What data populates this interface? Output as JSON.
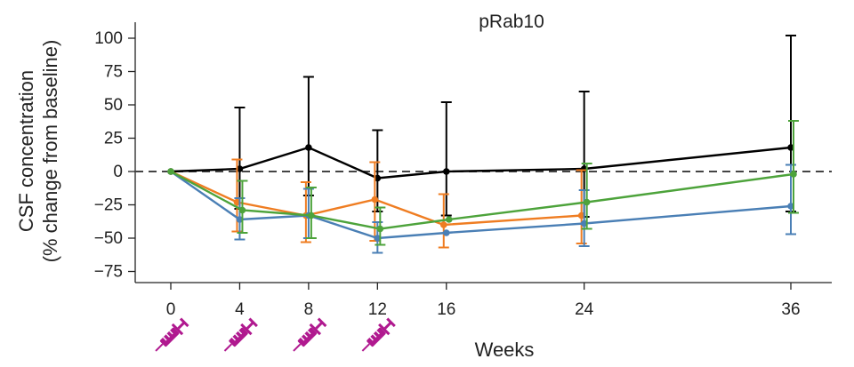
{
  "chart_data": {
    "type": "line",
    "title": "pRab10",
    "xlabel": "Weeks",
    "ylabel_line1": "CSF concentration",
    "ylabel_line2": "(% change from baseline)",
    "ylim": [
      -75,
      105
    ],
    "yticks": [
      100,
      75,
      50,
      25,
      0,
      -25,
      -50,
      -75
    ],
    "xticks": [
      0,
      4,
      8,
      12,
      16,
      24,
      36
    ],
    "xlim": [
      -1.5,
      38
    ],
    "baseline": 0,
    "dose_weeks": [
      0,
      4,
      8,
      12
    ],
    "dose_icon": "syringe-icon",
    "series": [
      {
        "name": "black",
        "color": "#000000",
        "points": [
          {
            "x": 0,
            "y": 0,
            "lo": 0,
            "hi": 0
          },
          {
            "x": 4,
            "y": 2,
            "lo": -28,
            "hi": 48
          },
          {
            "x": 8,
            "y": 18,
            "lo": -18,
            "hi": 71
          },
          {
            "x": 12,
            "y": -5,
            "lo": -30,
            "hi": 31
          },
          {
            "x": 16,
            "y": 0,
            "lo": -33,
            "hi": 52
          },
          {
            "x": 24,
            "y": 2,
            "lo": -34,
            "hi": 60
          },
          {
            "x": 36,
            "y": 18,
            "lo": -30,
            "hi": 102
          }
        ]
      },
      {
        "name": "orange",
        "color": "#ef7d22",
        "points": [
          {
            "x": 0,
            "y": 0,
            "lo": 0,
            "hi": 0
          },
          {
            "x": 4,
            "y": -23,
            "lo": -45,
            "hi": 9
          },
          {
            "x": 8,
            "y": -33,
            "lo": -53,
            "hi": -8
          },
          {
            "x": 12,
            "y": -21,
            "lo": -52,
            "hi": 7
          },
          {
            "x": 16,
            "y": -40,
            "lo": -57,
            "hi": -17
          },
          {
            "x": 24,
            "y": -33,
            "lo": -54,
            "hi": 1
          }
        ]
      },
      {
        "name": "blue",
        "color": "#4a7fb5",
        "points": [
          {
            "x": 0,
            "y": 0,
            "lo": 0,
            "hi": 0
          },
          {
            "x": 4,
            "y": -36,
            "lo": -51,
            "hi": -20
          },
          {
            "x": 8,
            "y": -33,
            "lo": -50,
            "hi": -13
          },
          {
            "x": 12,
            "y": -50,
            "lo": -61,
            "hi": -38
          },
          {
            "x": 16,
            "y": -46,
            "lo": null,
            "hi": null
          },
          {
            "x": 24,
            "y": -39,
            "lo": -56,
            "hi": -14
          },
          {
            "x": 36,
            "y": -26,
            "lo": -47,
            "hi": 5
          }
        ]
      },
      {
        "name": "green",
        "color": "#4da33b",
        "points": [
          {
            "x": 0,
            "y": 0,
            "lo": 0,
            "hi": 0
          },
          {
            "x": 4,
            "y": -29,
            "lo": -46,
            "hi": -7
          },
          {
            "x": 8,
            "y": -33,
            "lo": -50,
            "hi": -12
          },
          {
            "x": 12,
            "y": -43,
            "lo": -55,
            "hi": -27
          },
          {
            "x": 16,
            "y": -36,
            "lo": null,
            "hi": null
          },
          {
            "x": 24,
            "y": -23,
            "lo": -43,
            "hi": 6
          },
          {
            "x": 36,
            "y": -2,
            "lo": -31,
            "hi": 38
          }
        ]
      }
    ]
  }
}
